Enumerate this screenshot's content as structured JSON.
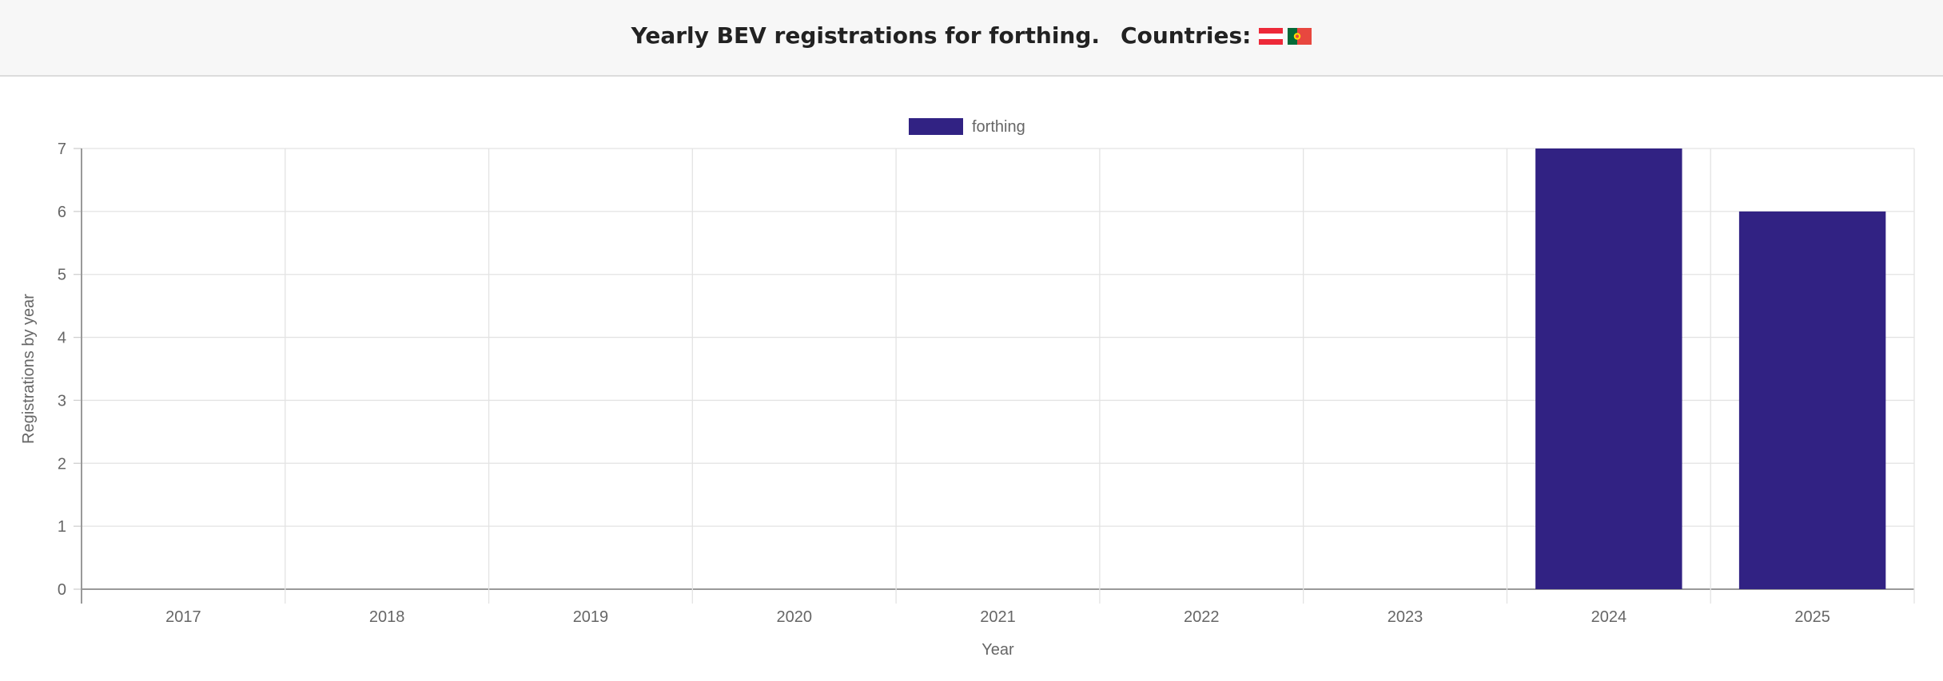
{
  "header": {
    "title": "Yearly BEV registrations for forthing.",
    "countries_label": "Countries:",
    "flags": [
      {
        "icon": "austria-flag-icon",
        "colors": [
          "#ed2939",
          "#ffffff",
          "#ed2939"
        ]
      },
      {
        "icon": "portugal-flag-icon",
        "colors": [
          "#046a38",
          "#e8473f",
          "#ffe000"
        ]
      }
    ]
  },
  "chart_data": {
    "type": "bar",
    "categories": [
      "2017",
      "2018",
      "2019",
      "2020",
      "2021",
      "2022",
      "2023",
      "2024",
      "2025"
    ],
    "series": [
      {
        "name": "forthing",
        "values": [
          0,
          0,
          0,
          0,
          0,
          0,
          0,
          7,
          6
        ],
        "color": "#312283"
      }
    ],
    "xlabel": "Year",
    "ylabel": "Registrations by year",
    "ylim": [
      0,
      7
    ],
    "yticks": [
      "0",
      "1",
      "2",
      "3",
      "4",
      "5",
      "6",
      "7"
    ],
    "grid": true,
    "legend_position": "top-center"
  }
}
